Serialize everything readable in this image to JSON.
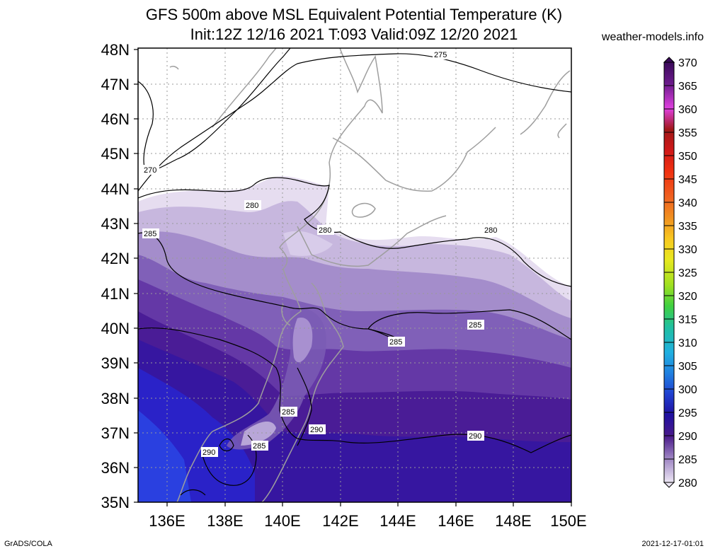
{
  "header": {
    "title_line1": "GFS 500m above MSL Equivalent Potential Temperature (K)",
    "title_line2": "Init:12Z 12/16 2021 T:093 Valid:09Z 12/20 2021",
    "site": "weather-models.info"
  },
  "footer": {
    "left": "GrADS/COLA",
    "right": "2021-12-17-01:01"
  },
  "map": {
    "lat_labels": [
      "48N",
      "47N",
      "46N",
      "45N",
      "44N",
      "43N",
      "42N",
      "41N",
      "40N",
      "39N",
      "38N",
      "37N",
      "36N",
      "35N"
    ],
    "lon_labels": [
      "136E",
      "138E",
      "140E",
      "142E",
      "144E",
      "146E",
      "148E",
      "150E"
    ],
    "contour_labels": [
      "275",
      "270",
      "280",
      "280",
      "280",
      "285",
      "285",
      "285",
      "285",
      "290",
      "290",
      "285",
      "290"
    ]
  },
  "colorbar": {
    "labels": [
      "370",
      "365",
      "360",
      "355",
      "350",
      "345",
      "340",
      "335",
      "330",
      "325",
      "320",
      "315",
      "310",
      "305",
      "300",
      "295",
      "290",
      "285",
      "280"
    ],
    "colors": [
      "#3a0a5a",
      "#6a1a8a",
      "#c020c0",
      "#e040e0",
      "#a01818",
      "#d01818",
      "#f03010",
      "#f06020",
      "#f09020",
      "#f8c820",
      "#e8e820",
      "#a0e020",
      "#40d040",
      "#20c0a0",
      "#20b0e0",
      "#2080e0",
      "#2040d0",
      "#2010a0",
      "#4a1a8a",
      "#9a80c0",
      "#e8e0f0"
    ]
  }
}
